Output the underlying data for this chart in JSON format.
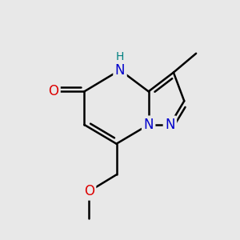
{
  "bg_color": "#e8e8e8",
  "atom_colors": {
    "C": "#000000",
    "N": "#0000cc",
    "O": "#dd0000",
    "H": "#008080"
  },
  "bond_color": "#000000",
  "bond_width": 1.8,
  "font_size_N": 12,
  "font_size_O": 12,
  "font_size_H": 10,
  "font_size_methyl": 10
}
